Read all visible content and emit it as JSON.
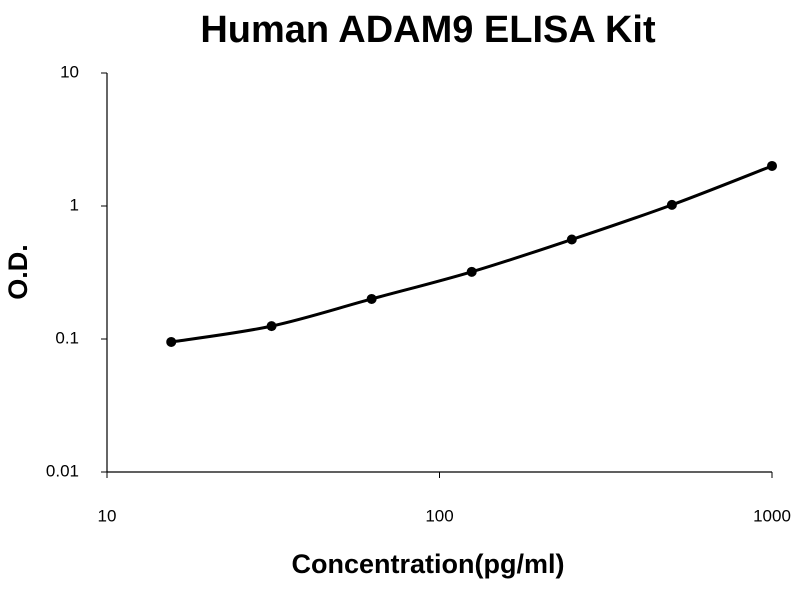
{
  "chart_data": {
    "type": "scatter",
    "title": "Human ADAM9 ELISA Kit",
    "x_label": "Concentration(pg/ml)",
    "y_label": "O.D.",
    "x": [
      15.6,
      31.25,
      62.5,
      125,
      250,
      500,
      1000
    ],
    "values": [
      0.095,
      0.125,
      0.2,
      0.32,
      0.56,
      1.02,
      2.0
    ],
    "color": "#000000",
    "line": "smooth",
    "xscale": "log",
    "yscale": "log",
    "xlim": [
      10,
      1000
    ],
    "ylim": [
      0.01,
      10
    ],
    "xticks": [
      10,
      100,
      1000
    ],
    "yticks": [
      0.01,
      0.1,
      1,
      10
    ]
  }
}
